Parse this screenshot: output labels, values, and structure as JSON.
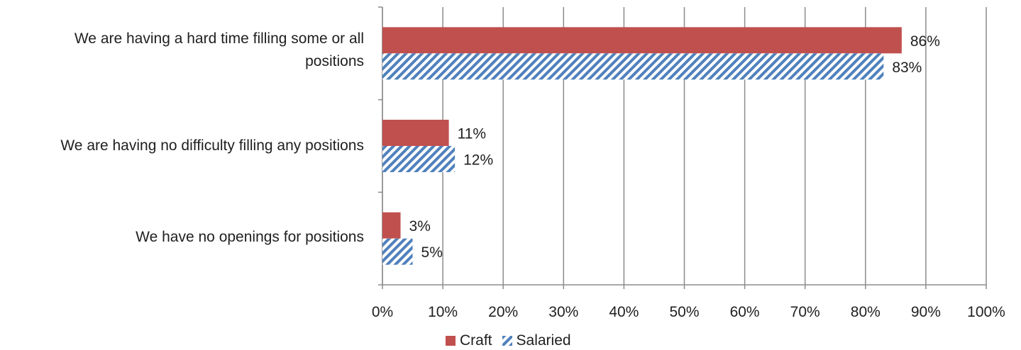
{
  "chart_data": {
    "type": "bar",
    "orientation": "horizontal",
    "categories": [
      "We are having a hard time filling some or all positions",
      "We are having no difficulty filling any positions",
      "We have no openings for positions"
    ],
    "category_label_lines": [
      [
        "We are having a hard time filling some or all",
        "positions"
      ],
      [
        "We are having no difficulty filling any positions"
      ],
      [
        "We have no openings for positions"
      ]
    ],
    "series": [
      {
        "name": "Craft",
        "values": [
          86,
          11,
          3
        ],
        "labels": [
          "86%",
          "11%",
          "3%"
        ],
        "color": "#c0504d",
        "pattern": "solid"
      },
      {
        "name": "Salaried",
        "values": [
          83,
          12,
          5
        ],
        "labels": [
          "83%",
          "12%",
          "5%"
        ],
        "color": "#4f81bd",
        "pattern": "diagonal-hatch"
      }
    ],
    "xlim": [
      0,
      100
    ],
    "x_ticks": [
      "0%",
      "10%",
      "20%",
      "30%",
      "40%",
      "50%",
      "60%",
      "70%",
      "80%",
      "90%",
      "100%"
    ],
    "grid": "vertical",
    "legend_position": "bottom"
  }
}
